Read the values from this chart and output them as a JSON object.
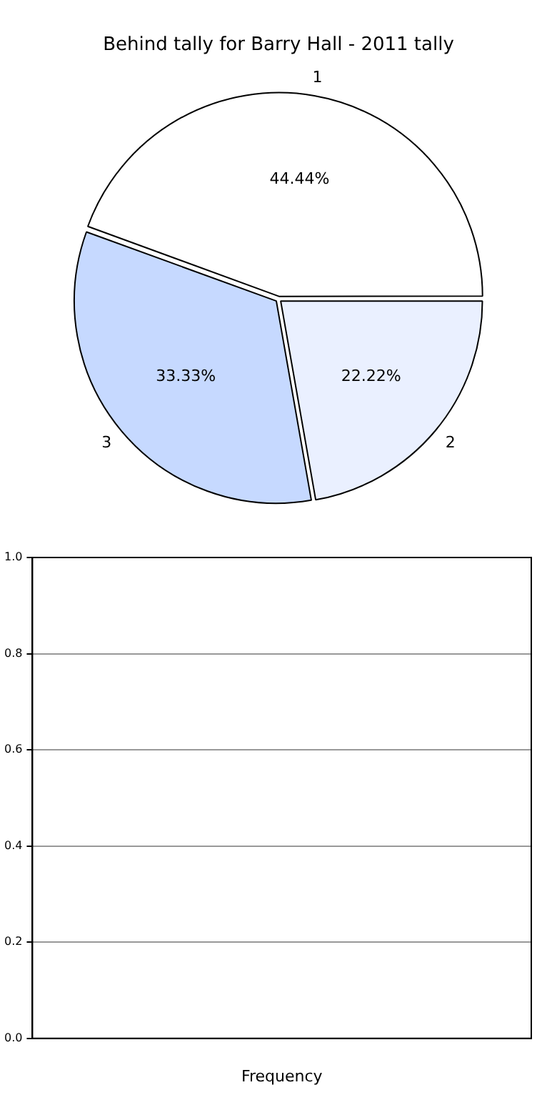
{
  "chart_data": [
    {
      "type": "pie",
      "title": "Behind tally for Barry Hall - 2011 tally",
      "categories": [
        "1",
        "2",
        "3"
      ],
      "values": [
        44.44,
        22.22,
        33.33
      ],
      "colors": [
        "#ffffff",
        "#eaf0ff",
        "#c6d9ff"
      ],
      "value_labels": [
        "44.44%",
        "22.22%",
        "33.33%"
      ],
      "legend": false
    },
    {
      "type": "bar",
      "xlabel": "Frequency",
      "categories": [
        null
      ],
      "values": [
        null
      ],
      "ylim": [
        0,
        1
      ],
      "yticks": [
        {
          "value": 0,
          "label": "0.0"
        },
        {
          "value": 0.2,
          "label": "0.2"
        },
        {
          "value": 0.4,
          "label": "0.4"
        },
        {
          "value": 0.6,
          "label": "0.6"
        },
        {
          "value": 0.8,
          "label": "0.8"
        },
        {
          "value": 1,
          "label": "1.0"
        }
      ],
      "grid": "y",
      "legend": false
    }
  ]
}
